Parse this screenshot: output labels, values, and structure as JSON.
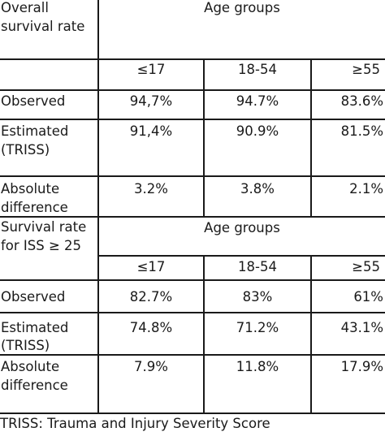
{
  "sections": [
    {
      "title_lines": [
        "Overall",
        "survival rate"
      ],
      "group_header": "Age groups",
      "age_labels": [
        "≤17",
        "18-54",
        "≥55"
      ],
      "rows": [
        {
          "label_lines": [
            "Observed"
          ],
          "values": [
            "94,7%",
            "94.7%",
            "83.6%"
          ]
        },
        {
          "label_lines": [
            "Estimated",
            "(TRISS)"
          ],
          "values": [
            "91,4%",
            "90.9%",
            "81.5%"
          ]
        },
        {
          "label_lines": [
            "Absolute",
            "difference"
          ],
          "values": [
            "3.2%",
            "3.8%",
            "2.1%"
          ]
        }
      ]
    },
    {
      "title_lines": [
        "Survival rate",
        "for ISS ≥ 25"
      ],
      "group_header": "Age groups",
      "age_labels": [
        "≤17",
        "18-54",
        "≥55"
      ],
      "rows": [
        {
          "label_lines": [
            "Observed"
          ],
          "values": [
            "82.7%",
            "83%",
            "61%"
          ]
        },
        {
          "label_lines": [
            "Estimated",
            "(TRISS)"
          ],
          "values": [
            "74.8%",
            "71.2%",
            "43.1%"
          ]
        },
        {
          "label_lines": [
            "Absolute",
            "difference"
          ],
          "values": [
            "7.9%",
            "11.8%",
            "17.9%"
          ]
        }
      ]
    }
  ],
  "footnote": "TRISS: Trauma and Injury Severity Score"
}
